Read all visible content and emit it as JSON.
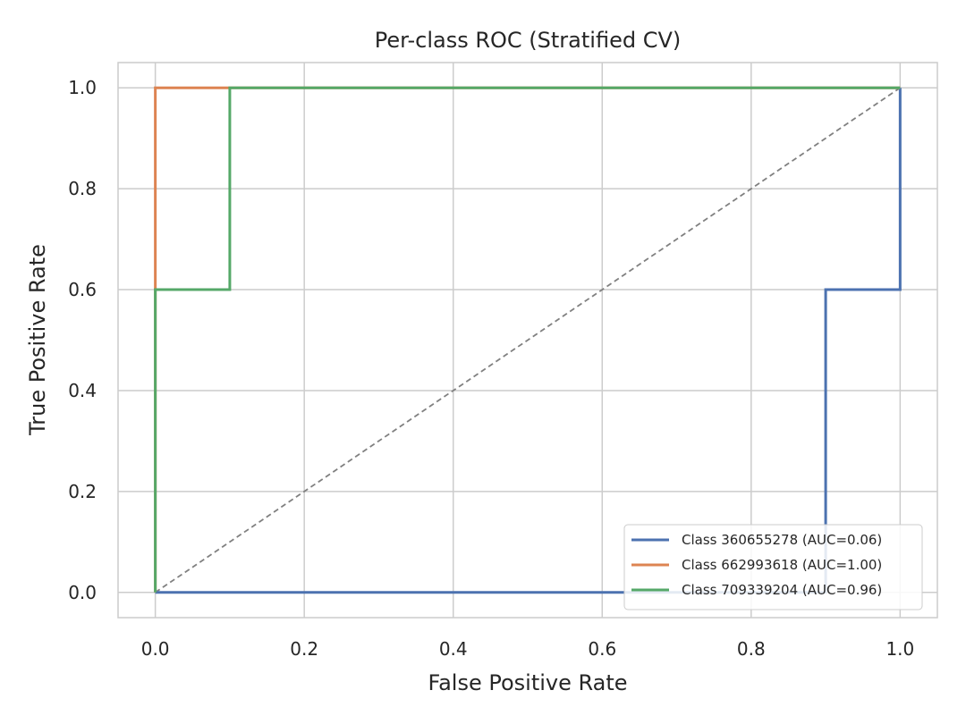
{
  "chart_data": {
    "type": "line",
    "title": "Per-class ROC (Stratified CV)",
    "xlabel": "False Positive Rate",
    "ylabel": "True Positive Rate",
    "xlim": [
      -0.05,
      1.05
    ],
    "ylim": [
      -0.05,
      1.05
    ],
    "xticks": [
      "0.0",
      "0.2",
      "0.4",
      "0.6",
      "0.8",
      "1.0"
    ],
    "yticks": [
      "0.0",
      "0.2",
      "0.4",
      "0.6",
      "0.8",
      "1.0"
    ],
    "grid": true,
    "legend_position": "lower-right",
    "diagonal": {
      "x": [
        0,
        1
      ],
      "y": [
        0,
        1
      ],
      "color": "#808080",
      "style": "dashed"
    },
    "series": [
      {
        "name": "Class 360655278 (AUC=0.06)",
        "color": "#4c72b0",
        "x": [
          0.0,
          0.9,
          0.9,
          1.0,
          1.0
        ],
        "y": [
          0.0,
          0.0,
          0.6,
          0.6,
          1.0
        ]
      },
      {
        "name": "Class 662993618 (AUC=1.00)",
        "color": "#dd8452",
        "x": [
          0.0,
          0.0,
          0.1,
          1.0
        ],
        "y": [
          0.0,
          1.0,
          1.0,
          1.0
        ]
      },
      {
        "name": "Class 709339204 (AUC=0.96)",
        "color": "#55a868",
        "x": [
          0.0,
          0.0,
          0.1,
          0.1,
          1.0
        ],
        "y": [
          0.0,
          0.6,
          0.6,
          1.0,
          1.0
        ]
      }
    ]
  }
}
